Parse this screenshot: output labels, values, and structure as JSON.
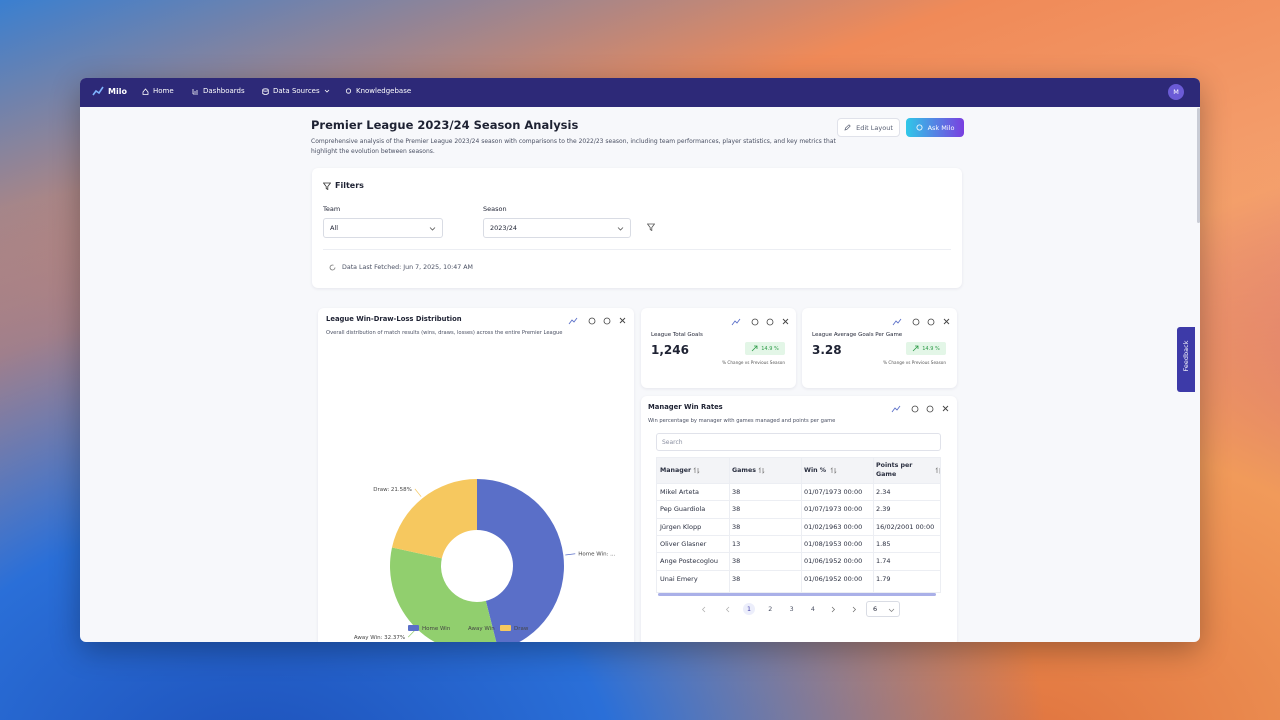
{
  "nav": {
    "brand": "Milo",
    "items": [
      "Home",
      "Dashboards",
      "Data Sources",
      "Knowledgebase"
    ],
    "avatar": "M"
  },
  "header": {
    "title": "Premier League 2023/24 Season Analysis",
    "description": "Comprehensive analysis of the Premier League 2023/24 season with comparisons to the 2022/23 season, including team performances, player statistics, and key metrics that highlight the evolution between seasons.",
    "buttons": [
      "Edit Layout",
      "Ask Milo"
    ]
  },
  "filters": {
    "title": "Filters",
    "fields": [
      {
        "label": "Team",
        "value": "All"
      },
      {
        "label": "Season",
        "value": "2023/24"
      }
    ],
    "fetched": "Data Last Fetched: Jun 7, 2025, 10:47 AM"
  },
  "chart_data": {
    "type": "pie",
    "title": "League Win-Draw-Loss Distribution",
    "subtitle": "Overall distribution of match results (wins, draws, losses) across the entire Premier League",
    "categories": [
      "Home Win",
      "Away Win",
      "Draw"
    ],
    "values": [
      46.05,
      32.37,
      21.58
    ],
    "value_labels": [
      "Home Win: ...",
      "Away Win: 32.37%",
      "Draw: 21.58%"
    ],
    "colors": [
      "#5a6fc8",
      "#91cf6e",
      "#f6c85f"
    ],
    "donut": true,
    "legend": "bottom"
  },
  "kpis": [
    {
      "title": "League Total Goals",
      "value": "1,246",
      "change": "14.9 %",
      "note": "% Change vs Previous Season"
    },
    {
      "title": "League Average Goals Per Game",
      "value": "3.28",
      "change": "14.9 %",
      "note": "% Change vs Previous Season"
    }
  ],
  "table": {
    "title": "Manager Win Rates",
    "subtitle": "Win percentage by manager with games managed and points per game",
    "search": "Search",
    "columns": [
      "Manager",
      "Games",
      "Win %",
      "Points per Game"
    ],
    "rows": [
      [
        "Mikel Arteta",
        "38",
        "01/07/1973 00:00",
        "2.34"
      ],
      [
        "Pep Guardiola",
        "38",
        "01/07/1973 00:00",
        "2.39"
      ],
      [
        "Jürgen Klopp",
        "38",
        "01/02/1963 00:00",
        "16/02/2001 00:00"
      ],
      [
        "Oliver Glasner",
        "13",
        "01/08/1953 00:00",
        "1.85"
      ],
      [
        "Ange Postecoglou",
        "38",
        "01/06/1952 00:00",
        "1.74"
      ],
      [
        "Unai Emery",
        "38",
        "01/06/1952 00:00",
        "1.79"
      ]
    ],
    "pages": [
      "1",
      "2",
      "3",
      "4"
    ],
    "page_size": "6"
  },
  "feedback": "Feedback"
}
